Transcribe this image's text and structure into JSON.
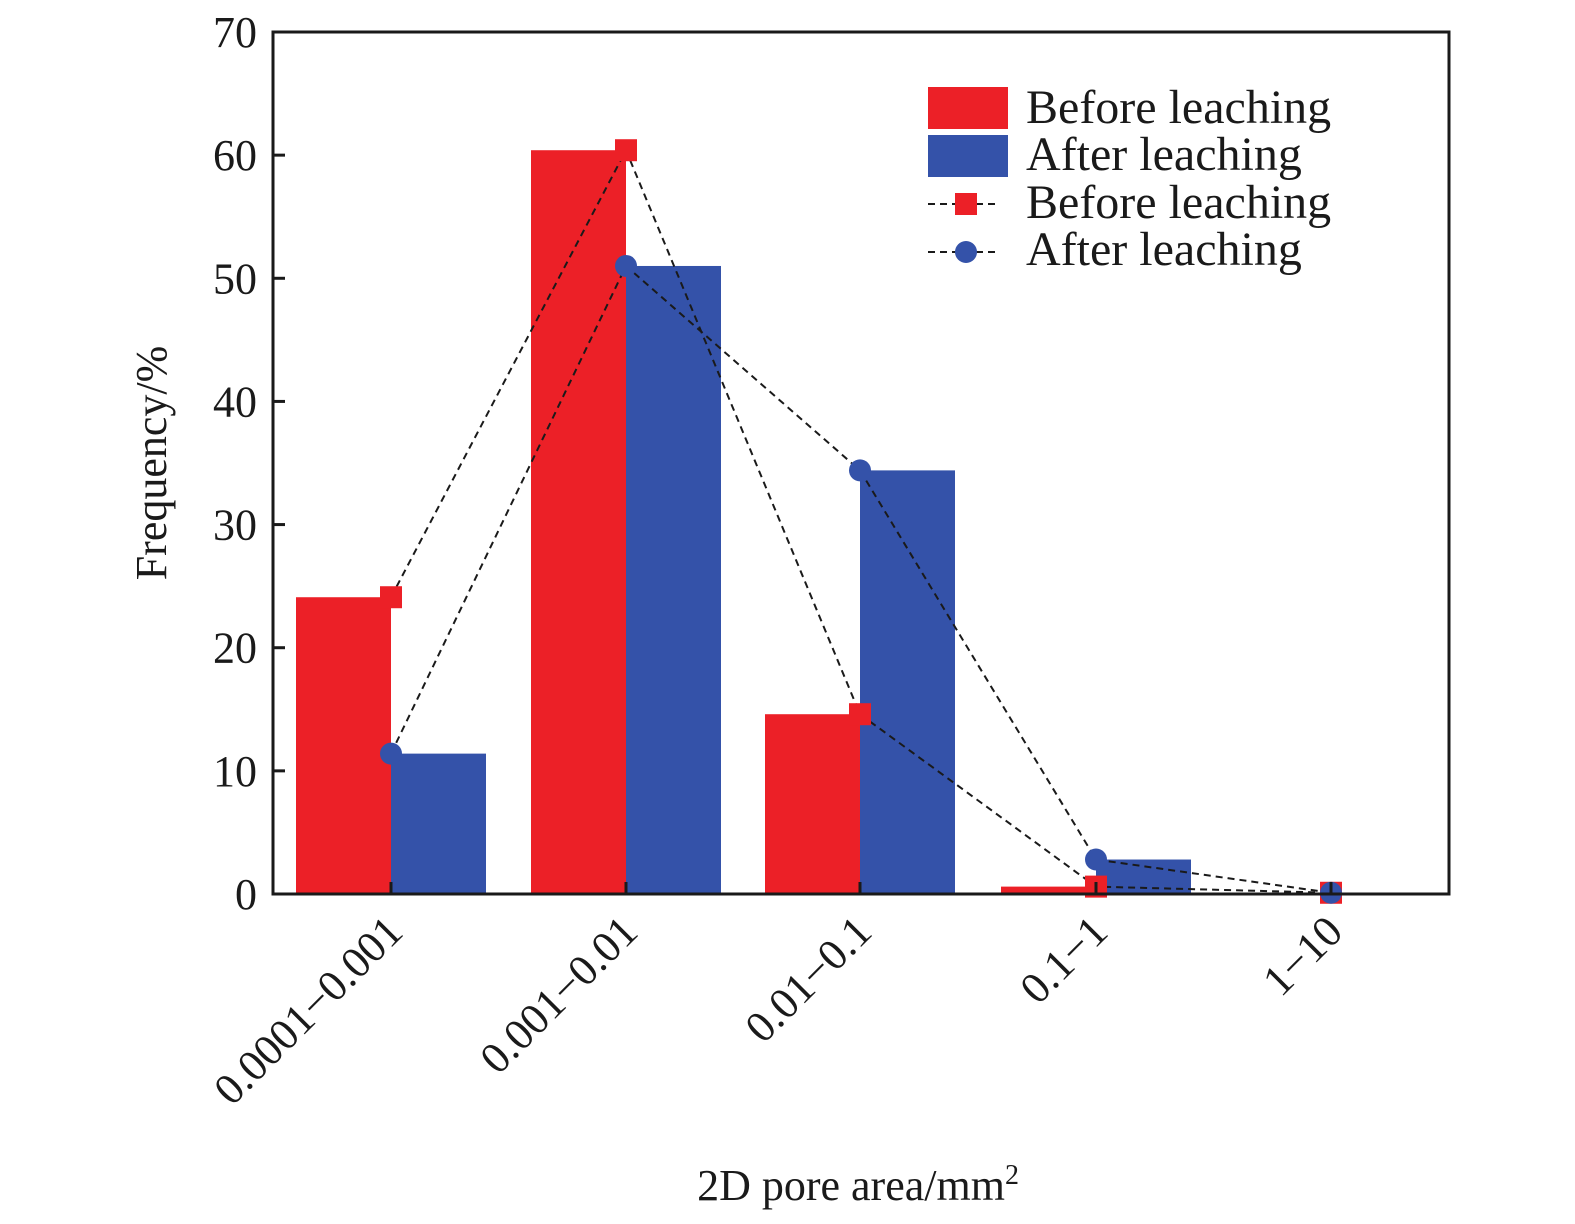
{
  "chart_data": {
    "type": "bar",
    "xlabel": "2D pore area/mm",
    "xlabel_sup": "2",
    "ylabel": "Frequency/%",
    "ylim": [
      0,
      70
    ],
    "yticks": [
      "0",
      "10",
      "20",
      "30",
      "40",
      "50",
      "60",
      "70"
    ],
    "categories": [
      "0.0001−0.001",
      "0.001−0.01",
      "0.01−0.1",
      "0.1−1",
      "1−10"
    ],
    "series": [
      {
        "name": "Before leaching",
        "values": [
          24.1,
          60.4,
          14.6,
          0.6,
          0.1
        ]
      },
      {
        "name": "After leaching",
        "values": [
          11.4,
          51.0,
          34.4,
          2.8,
          0.1
        ]
      }
    ],
    "line_series": [
      {
        "name": "Before leaching",
        "marker": "square",
        "values": [
          24.1,
          60.4,
          14.6,
          0.6,
          0.1
        ]
      },
      {
        "name": "After leaching",
        "marker": "circle",
        "values": [
          11.4,
          51.0,
          34.4,
          2.8,
          0.1
        ]
      }
    ],
    "colors": {
      "before": "#ec2027",
      "after": "#3452a9",
      "line": "#1a1a1a"
    },
    "legend_position": "top-right",
    "grid": false
  }
}
